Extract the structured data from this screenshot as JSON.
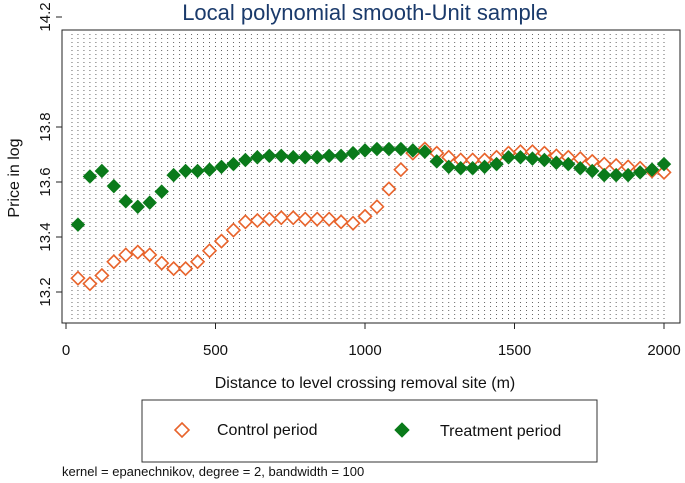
{
  "chart_data": {
    "type": "scatter",
    "title": "Local polynomial smooth-Unit sample",
    "xlabel": "Distance to level crossing removal site (m)",
    "ylabel": "Price in log",
    "xlim": [
      0,
      2000
    ],
    "ylim": [
      13.15,
      14.2
    ],
    "x_ticks": [
      0,
      500,
      1000,
      1500,
      2000
    ],
    "y_ticks": [
      13.2,
      13.4,
      13.6,
      13.8,
      14.2
    ],
    "grid_x_step": 20,
    "note": "kernel = epanechnikov, degree = 2, bandwidth = 100",
    "legend_position": "bottom",
    "x": [
      40,
      80,
      120,
      160,
      200,
      240,
      280,
      320,
      360,
      400,
      440,
      480,
      520,
      560,
      600,
      640,
      680,
      720,
      760,
      800,
      840,
      880,
      920,
      960,
      1000,
      1040,
      1080,
      1120,
      1160,
      1200,
      1240,
      1280,
      1320,
      1360,
      1400,
      1440,
      1480,
      1520,
      1560,
      1600,
      1640,
      1680,
      1720,
      1760,
      1800,
      1840,
      1880,
      1920,
      1960,
      2000
    ],
    "series": [
      {
        "name": "Control period",
        "marker": "hollow-diamond",
        "color": "#e8642c",
        "values": [
          13.25,
          13.23,
          13.26,
          13.31,
          13.335,
          13.345,
          13.335,
          13.305,
          13.285,
          13.285,
          13.31,
          13.35,
          13.385,
          13.425,
          13.455,
          13.46,
          13.465,
          13.47,
          13.47,
          13.465,
          13.465,
          13.465,
          13.455,
          13.45,
          13.475,
          13.51,
          13.575,
          13.645,
          13.705,
          13.72,
          13.705,
          13.69,
          13.68,
          13.68,
          13.68,
          13.69,
          13.705,
          13.71,
          13.71,
          13.705,
          13.695,
          13.69,
          13.685,
          13.675,
          13.665,
          13.66,
          13.655,
          13.65,
          13.64,
          13.635
        ]
      },
      {
        "name": "Treatment period",
        "marker": "filled-diamond",
        "color": "#0a7a1a",
        "values": [
          13.445,
          13.62,
          13.64,
          13.585,
          13.53,
          13.51,
          13.525,
          13.565,
          13.625,
          13.64,
          13.64,
          13.645,
          13.655,
          13.665,
          13.68,
          13.69,
          13.695,
          13.695,
          13.69,
          13.69,
          13.69,
          13.695,
          13.695,
          13.705,
          13.715,
          13.72,
          13.72,
          13.72,
          13.715,
          13.71,
          13.675,
          13.655,
          13.65,
          13.65,
          13.655,
          13.665,
          13.69,
          13.69,
          13.685,
          13.68,
          13.67,
          13.665,
          13.65,
          13.64,
          13.625,
          13.625,
          13.625,
          13.635,
          13.645,
          13.665
        ]
      }
    ]
  }
}
